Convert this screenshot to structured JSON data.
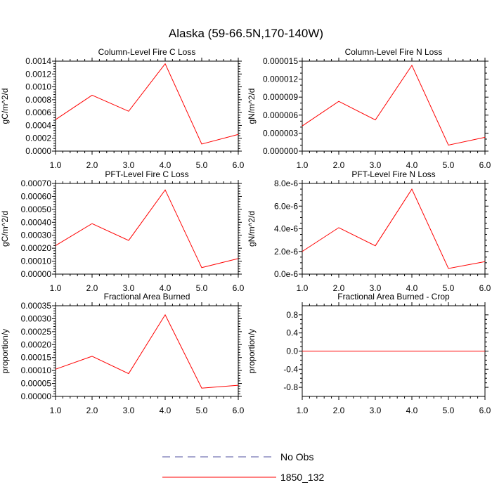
{
  "figure_title": "Alaska (59-66.5N,170-140W)",
  "colors": {
    "series": "#ff0000",
    "obs": "#5050a0",
    "axis": "#000000"
  },
  "legend": [
    {
      "label": "No Obs",
      "style": "dashed",
      "color": "#5050a0"
    },
    {
      "label": "1850_132",
      "style": "solid",
      "color": "#ff0000"
    }
  ],
  "chart_data": [
    {
      "id": "col-c",
      "type": "line",
      "title": "Column-Level Fire C Loss",
      "ylabel": "gC/m^2/d",
      "x": [
        1,
        2,
        3,
        4,
        5,
        6
      ],
      "xlim": [
        1,
        6
      ],
      "xticks": [
        "1.0",
        "2.0",
        "3.0",
        "4.0",
        "5.0",
        "6.0"
      ],
      "ylim": [
        0,
        0.0014
      ],
      "yticks": [
        0,
        0.0002,
        0.0004,
        0.0006,
        0.0008,
        0.001,
        0.0012,
        0.0014
      ],
      "yticklabels": [
        "0.0000",
        "0.0002",
        "0.0004",
        "0.0006",
        "0.0008",
        "0.0010",
        "0.0012",
        "0.0014"
      ],
      "yminor": 5,
      "series": [
        {
          "name": "1850_132",
          "values": [
            0.00049,
            0.00087,
            0.00062,
            0.00136,
            0.00011,
            0.00026
          ]
        }
      ]
    },
    {
      "id": "col-n",
      "type": "line",
      "title": "Column-Level Fire N Loss",
      "ylabel": "gN/m^2/d",
      "x": [
        1,
        2,
        3,
        4,
        5,
        6
      ],
      "xlim": [
        1,
        6
      ],
      "xticks": [
        "1.0",
        "2.0",
        "3.0",
        "4.0",
        "5.0",
        "6.0"
      ],
      "ylim": [
        0,
        1.5e-05
      ],
      "yticks": [
        0,
        3e-06,
        6e-06,
        9e-06,
        1.2e-05,
        1.5e-05
      ],
      "yticklabels": [
        "0.000000",
        "0.000003",
        "0.000006",
        "0.000009",
        "0.000012",
        "0.000015"
      ],
      "yminor": 3,
      "series": [
        {
          "name": "1850_132",
          "values": [
            4.2e-06,
            8.3e-06,
            5.2e-06,
            1.43e-05,
            1e-06,
            2.3e-06
          ]
        }
      ]
    },
    {
      "id": "pft-c",
      "type": "line",
      "title": "PFT-Level Fire C Loss",
      "ylabel": "gC/m^2/d",
      "x": [
        1,
        2,
        3,
        4,
        5,
        6
      ],
      "xlim": [
        1,
        6
      ],
      "xticks": [
        "1.0",
        "2.0",
        "3.0",
        "4.0",
        "5.0",
        "6.0"
      ],
      "ylim": [
        0,
        0.0007
      ],
      "yticks": [
        0,
        0.0001,
        0.0002,
        0.0003,
        0.0004,
        0.0005,
        0.0006,
        0.0007
      ],
      "yticklabels": [
        "0.00000",
        "0.00010",
        "0.00020",
        "0.00030",
        "0.00040",
        "0.00050",
        "0.00060",
        "0.00070"
      ],
      "yminor": 5,
      "series": [
        {
          "name": "1850_132",
          "values": [
            0.00022,
            0.00039,
            0.00026,
            0.00065,
            5e-05,
            0.00012
          ]
        }
      ]
    },
    {
      "id": "pft-n",
      "type": "line",
      "title": "PFT-Level Fire N Loss",
      "ylabel": "gN/m^2/d",
      "x": [
        1,
        2,
        3,
        4,
        5,
        6
      ],
      "xlim": [
        1,
        6
      ],
      "xticks": [
        "1.0",
        "2.0",
        "3.0",
        "4.0",
        "5.0",
        "6.0"
      ],
      "ylim": [
        0,
        8e-06
      ],
      "yticks": [
        0,
        2e-06,
        4e-06,
        6e-06,
        8e-06
      ],
      "yticklabels": [
        "0.0e-6",
        "2.0e-6",
        "4.0e-6",
        "6.0e-6",
        "8.0e-6"
      ],
      "yminor": 4,
      "series": [
        {
          "name": "1850_132",
          "values": [
            2e-06,
            4.1e-06,
            2.5e-06,
            7.5e-06,
            5e-07,
            1.1e-06
          ]
        }
      ]
    },
    {
      "id": "fab",
      "type": "line",
      "title": "Fractional Area Burned",
      "ylabel": "proportion/y",
      "x": [
        1,
        2,
        3,
        4,
        5,
        6
      ],
      "xlim": [
        1,
        6
      ],
      "xticks": [
        "1.0",
        "2.0",
        "3.0",
        "4.0",
        "5.0",
        "6.0"
      ],
      "ylim": [
        0,
        0.00035
      ],
      "yticks": [
        0,
        5e-05,
        0.0001,
        0.00015,
        0.0002,
        0.00025,
        0.0003,
        0.00035
      ],
      "yticklabels": [
        "0.00000",
        "0.00005",
        "0.00010",
        "0.00015",
        "0.00020",
        "0.00025",
        "0.00030",
        "0.00035"
      ],
      "yminor": 5,
      "series": [
        {
          "name": "1850_132",
          "values": [
            0.000105,
            0.000155,
            8.8e-05,
            0.000315,
            3.2e-05,
            4.3e-05
          ]
        }
      ]
    },
    {
      "id": "fab-crop",
      "type": "line",
      "title": "Fractional Area Burned - Crop",
      "ylabel": "proportion/y",
      "x": [
        1,
        2,
        3,
        4,
        5,
        6
      ],
      "xlim": [
        1,
        6
      ],
      "xticks": [
        "1.0",
        "2.0",
        "3.0",
        "4.0",
        "5.0",
        "6.0"
      ],
      "ylim": [
        -1,
        1
      ],
      "yticks": [
        -0.8,
        -0.4,
        0.0,
        0.4,
        0.8
      ],
      "yticklabels": [
        "-0.8",
        "-0.4",
        "0.0",
        "0.4",
        "0.8"
      ],
      "yminor": 4,
      "series": [
        {
          "name": "1850_132",
          "values": [
            0,
            0,
            0,
            0,
            0,
            0
          ]
        }
      ]
    }
  ]
}
